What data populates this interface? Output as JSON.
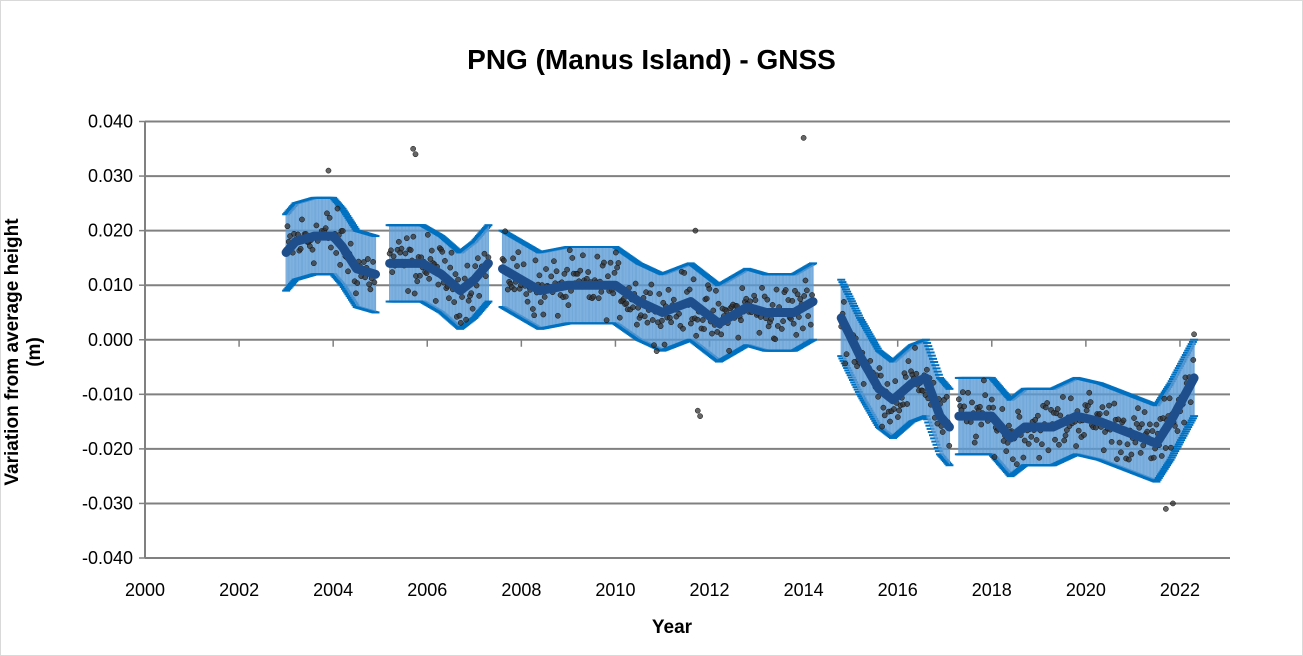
{
  "chart_data": {
    "type": "scatter",
    "title": "PNG (Manus Island) - GNSS",
    "xlabel": "Year",
    "ylabel": "Variation from average height (m)",
    "xlim": [
      2000,
      2023
    ],
    "ylim": [
      -0.04,
      0.04
    ],
    "x_ticks": [
      "2000",
      "2002",
      "2004",
      "2006",
      "2008",
      "2010",
      "2012",
      "2014",
      "2016",
      "2018",
      "2020",
      "2022"
    ],
    "y_ticks": [
      "0.040",
      "0.030",
      "0.020",
      "0.010",
      "0.000",
      "-0.010",
      "-0.020",
      "-0.030",
      "-0.040"
    ],
    "grid": "horizontal",
    "legend": "none",
    "error_half_width": 0.007,
    "colors": {
      "points": "#333333",
      "trend": "#1f4e8c",
      "error": "#5b9bd5",
      "error_cap": "#0070c0",
      "grid": "#808080"
    },
    "trend_segments": [
      [
        [
          2003.0,
          0.016
        ],
        [
          2003.2,
          0.018
        ],
        [
          2003.6,
          0.019
        ],
        [
          2004.0,
          0.019
        ],
        [
          2004.2,
          0.017
        ],
        [
          2004.5,
          0.013
        ],
        [
          2004.9,
          0.012
        ]
      ],
      [
        [
          2005.2,
          0.014
        ],
        [
          2005.9,
          0.014
        ],
        [
          2006.3,
          0.012
        ],
        [
          2006.7,
          0.009
        ],
        [
          2007.0,
          0.011
        ],
        [
          2007.3,
          0.014
        ]
      ],
      [
        [
          2007.6,
          0.013
        ],
        [
          2008.0,
          0.011
        ],
        [
          2008.4,
          0.009
        ],
        [
          2009.0,
          0.01
        ],
        [
          2010.0,
          0.01
        ],
        [
          2010.5,
          0.007
        ],
        [
          2011.0,
          0.005
        ],
        [
          2011.6,
          0.007
        ],
        [
          2012.2,
          0.003
        ],
        [
          2012.8,
          0.006
        ],
        [
          2013.2,
          0.005
        ],
        [
          2013.8,
          0.005
        ],
        [
          2014.2,
          0.007
        ]
      ],
      [
        [
          2014.8,
          0.004
        ],
        [
          2015.2,
          -0.003
        ],
        [
          2015.6,
          -0.009
        ],
        [
          2015.9,
          -0.011
        ],
        [
          2016.3,
          -0.008
        ],
        [
          2016.6,
          -0.007
        ],
        [
          2016.9,
          -0.014
        ],
        [
          2017.1,
          -0.016
        ]
      ],
      [
        [
          2017.3,
          -0.014
        ],
        [
          2018.0,
          -0.014
        ],
        [
          2018.4,
          -0.018
        ],
        [
          2018.7,
          -0.016
        ],
        [
          2019.3,
          -0.016
        ],
        [
          2019.8,
          -0.014
        ],
        [
          2020.3,
          -0.015
        ],
        [
          2020.9,
          -0.017
        ],
        [
          2021.5,
          -0.019
        ],
        [
          2021.8,
          -0.015
        ],
        [
          2022.3,
          -0.007
        ]
      ]
    ],
    "outliers": [
      [
        2003.9,
        0.031
      ],
      [
        2005.7,
        0.035
      ],
      [
        2005.75,
        0.034
      ],
      [
        2014.0,
        0.037
      ],
      [
        2011.7,
        0.02
      ],
      [
        2011.8,
        -0.014
      ],
      [
        2011.75,
        -0.013
      ],
      [
        2021.7,
        -0.031
      ],
      [
        2021.85,
        -0.03
      ],
      [
        2022.3,
        0.001
      ]
    ]
  }
}
